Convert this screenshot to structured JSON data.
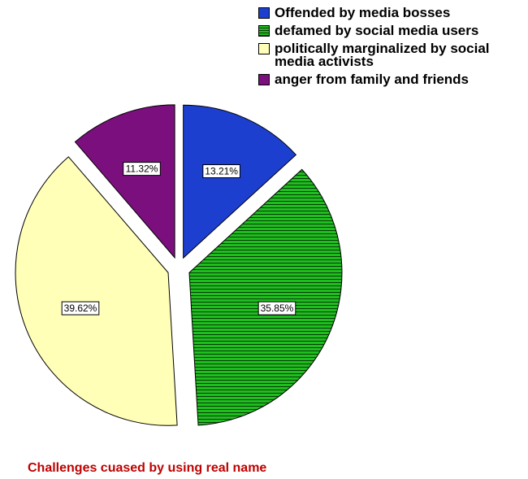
{
  "chart_data": {
    "type": "pie",
    "title": "Challenges cuased by using real name",
    "legend_position": "top-right",
    "start_angle_deg": 0,
    "direction": "clockwise",
    "slices": [
      {
        "label": "Offended by media bosses",
        "value": 13.21,
        "display": "13.21%",
        "color": "#1c3fd0",
        "pattern": "solid"
      },
      {
        "label": "defamed by social media users",
        "value": 35.85,
        "display": "35.85%",
        "color": "#1fbe1f",
        "pattern": "horizontal-stripes"
      },
      {
        "label": "politically marginalized by social media activists",
        "value": 39.62,
        "display": "39.62%",
        "color": "#ffffb8",
        "pattern": "solid"
      },
      {
        "label": "anger from family and friends",
        "value": 11.32,
        "display": "11.32%",
        "color": "#7b0f7e",
        "pattern": "solid"
      }
    ]
  }
}
